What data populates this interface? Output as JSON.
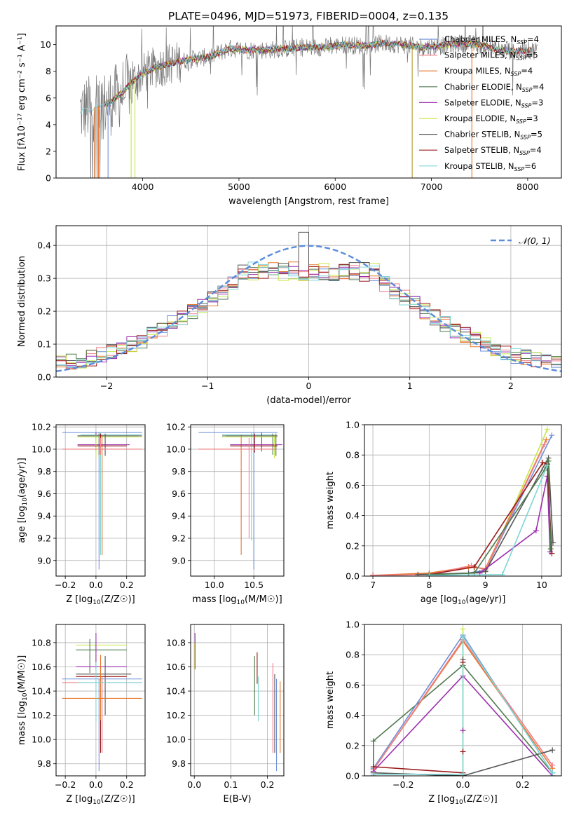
{
  "title": "PLATE=0496, MJD=51973, FIBERID=0004, z=0.135",
  "colors": {
    "chabrier_miles": "#6f8fd8",
    "salpeter_miles": "#f07f8a",
    "kroupa_miles": "#e6782d",
    "chabrier_elodie": "#4f7a4f",
    "salpeter_elodie": "#9b2fae",
    "kroupa_elodie": "#c6e84a",
    "chabrier_stelib": "#555555",
    "salpeter_stelib": "#9b1b1b",
    "kroupa_stelib": "#7fd6d6",
    "gauss": "#5b8bd9",
    "grid": "#b0b0b0"
  },
  "chart_data": [
    {
      "type": "line",
      "panel": "spectrum",
      "xlabel": "wavelength [Angstrom, rest frame]",
      "ylabel": "Flux [fλ10⁻¹⁷ erg cm⁻² s⁻¹ A⁻¹]",
      "xlim": [
        3100,
        8350
      ],
      "ylim": [
        0,
        11.4
      ],
      "xticks": [
        4000,
        5000,
        6000,
        7000,
        8000
      ],
      "yticks": [
        0,
        2,
        4,
        6,
        8,
        10
      ],
      "grid": false,
      "legend_position": "right",
      "legend": [
        {
          "label": "Chabrier MILES, N",
          "sub": "SSP",
          "suffix": "=4",
          "color": "#6f8fd8"
        },
        {
          "label": "Salpeter MILES, N",
          "sub": "SSP",
          "suffix": "=5",
          "color": "#f07f8a"
        },
        {
          "label": "Kroupa MILES, N",
          "sub": "SSP",
          "suffix": "=4",
          "color": "#e6782d"
        },
        {
          "label": "Chabrier ELODIE, N",
          "sub": "SSP",
          "suffix": "=4",
          "color": "#4f7a4f"
        },
        {
          "label": "Salpeter ELODIE, N",
          "sub": "SSP",
          "suffix": "=3",
          "color": "#9b2fae"
        },
        {
          "label": "Kroupa ELODIE, N",
          "sub": "SSP",
          "suffix": "=3",
          "color": "#c6e84a"
        },
        {
          "label": "Chabrier STELIB, N",
          "sub": "SSP",
          "suffix": "=5",
          "color": "#555555"
        },
        {
          "label": "Salpeter STELIB, N",
          "sub": "SSP",
          "suffix": "=4",
          "color": "#9b1b1b"
        },
        {
          "label": "Kroupa STELIB, N",
          "sub": "SSP",
          "suffix": "=6",
          "color": "#7fd6d6"
        }
      ],
      "continuum": {
        "x": [
          3350,
          3500,
          3650,
          3800,
          3950,
          4100,
          4300,
          4500,
          4700,
          4900,
          5100,
          5300,
          5500,
          5700,
          5900,
          6100,
          6300,
          6500,
          6700,
          6900,
          7100,
          7300,
          7500,
          7700,
          7900,
          8100
        ],
        "y": [
          5.0,
          5.3,
          5.6,
          6.5,
          7.6,
          8.2,
          8.6,
          8.9,
          9.1,
          9.7,
          9.6,
          9.6,
          9.7,
          9.8,
          9.8,
          10.0,
          9.9,
          10.1,
          10.0,
          9.8,
          9.9,
          10.1,
          10.0,
          9.6,
          9.5,
          9.6
        ]
      }
    },
    {
      "type": "line",
      "panel": "residual-histogram",
      "xlabel": "(data-model)/error",
      "ylabel": "Normed distribution",
      "xlim": [
        -2.5,
        2.5
      ],
      "ylim": [
        0,
        0.46
      ],
      "xticks": [
        -2,
        -1,
        0,
        1,
        2
      ],
      "yticks": [
        0.0,
        0.1,
        0.2,
        0.3,
        0.4
      ],
      "grid": true,
      "legend_position": "top-right",
      "gauss_label": "𝒩(0, 1)",
      "bin_width": 0.1
    },
    {
      "type": "scatter",
      "panel": "age-vs-metallicity",
      "xlabel": "Z [log10(Z/Z☉)]",
      "ylabel": "age  [log10(age/yr)]",
      "xlim": [
        -0.26,
        0.32
      ],
      "ylim": [
        8.86,
        10.22
      ],
      "xticks": [
        -0.2,
        0.0,
        0.2
      ],
      "yticks": [
        9.0,
        9.2,
        9.4,
        9.6,
        9.8,
        10.0,
        10.2
      ],
      "grid": true,
      "errorbars": [
        {
          "c": "#6f8fd8",
          "x": 0.02,
          "xe": [
            -0.22,
            0.3
          ],
          "y": 10.15,
          "ye": [
            8.92,
            10.15
          ]
        },
        {
          "c": "#7fd6d6",
          "x": 0.03,
          "xe": [
            -0.1,
            0.3
          ],
          "y": 10.13,
          "ye": [
            9.05,
            10.15
          ]
        },
        {
          "c": "#e6782d",
          "x": 0.04,
          "xe": [
            -0.22,
            0.3
          ],
          "y": 10.0,
          "ye": [
            9.05,
            10.13
          ]
        },
        {
          "c": "#4f7a4f",
          "x": 0.02,
          "xe": [
            -0.12,
            0.28
          ],
          "y": 10.12,
          "ye": [
            9.95,
            10.14
          ]
        },
        {
          "c": "#9b2fae",
          "x": 0.0,
          "xe": [
            -0.12,
            0.22
          ],
          "y": 10.04,
          "ye": [
            9.98,
            10.15
          ]
        },
        {
          "c": "#c6e84a",
          "x": 0.0,
          "xe": [
            -0.12,
            0.3
          ],
          "y": 10.11,
          "ye": [
            9.92,
            10.13
          ]
        },
        {
          "c": "#555555",
          "x": 0.06,
          "xe": [
            -0.12,
            0.3
          ],
          "y": 10.12,
          "ye": [
            9.94,
            10.14
          ]
        },
        {
          "c": "#9b1b1b",
          "x": 0.03,
          "xe": [
            -0.12,
            0.2
          ],
          "y": 10.03,
          "ye": [
            9.97,
            10.14
          ]
        },
        {
          "c": "#f07f8a",
          "x": 0.03,
          "xe": [
            -0.22,
            0.3
          ],
          "y": 10.0,
          "ye": [
            9.95,
            10.1
          ]
        }
      ]
    },
    {
      "type": "scatter",
      "panel": "age-vs-mass",
      "xlabel": "mass [log10(M/M☉)]",
      "ylabel": "",
      "xlim": [
        9.7,
        10.88
      ],
      "ylim": [
        8.86,
        10.22
      ],
      "xticks": [
        10.0,
        10.5
      ],
      "yticks": [
        9.0,
        9.2,
        9.4,
        9.6,
        9.8,
        10.0,
        10.2
      ],
      "grid": true,
      "errorbars": [
        {
          "c": "#6f8fd8",
          "x": 10.5,
          "xe": [
            9.8,
            10.8
          ],
          "y": 10.15,
          "ye": [
            8.92,
            10.15
          ]
        },
        {
          "c": "#7fd6d6",
          "x": 10.47,
          "xe": [
            10.1,
            10.75
          ],
          "y": 10.13,
          "ye": [
            9.18,
            10.15
          ]
        },
        {
          "c": "#e6782d",
          "x": 10.34,
          "xe": [
            9.8,
            10.78
          ],
          "y": 10.0,
          "ye": [
            9.05,
            10.13
          ]
        },
        {
          "c": "#4f7a4f",
          "x": 10.74,
          "xe": [
            10.1,
            10.76
          ],
          "y": 10.12,
          "ye": [
            9.95,
            10.14
          ]
        },
        {
          "c": "#9b2fae",
          "x": 10.6,
          "xe": [
            10.2,
            10.86
          ],
          "y": 10.04,
          "ye": [
            9.98,
            10.15
          ]
        },
        {
          "c": "#c6e84a",
          "x": 10.76,
          "xe": [
            10.1,
            10.8
          ],
          "y": 10.11,
          "ye": [
            9.92,
            10.13
          ]
        },
        {
          "c": "#555555",
          "x": 10.78,
          "xe": [
            10.15,
            10.8
          ],
          "y": 10.12,
          "ye": [
            9.94,
            10.14
          ]
        },
        {
          "c": "#9b1b1b",
          "x": 10.51,
          "xe": [
            10.2,
            10.8
          ],
          "y": 10.03,
          "ye": [
            9.97,
            10.14
          ]
        },
        {
          "c": "#f07f8a",
          "x": 10.44,
          "xe": [
            9.8,
            10.78
          ],
          "y": 10.0,
          "ye": [
            9.2,
            10.1
          ]
        }
      ]
    },
    {
      "type": "line",
      "panel": "mass-weight-vs-age",
      "xlabel": "age  [log10(age/yr)]",
      "ylabel": "mass weight",
      "xlim": [
        6.85,
        10.35
      ],
      "ylim": [
        0,
        1.0
      ],
      "xticks": [
        7,
        8,
        9,
        10
      ],
      "yticks": [
        0.0,
        0.2,
        0.4,
        0.6,
        0.8,
        1.0
      ],
      "grid": true,
      "series": [
        {
          "c": "#c6e84a",
          "x": [
            7.0,
            8.0,
            8.7,
            9.0,
            10.1
          ],
          "y": [
            0.005,
            0.01,
            0.02,
            0.03,
            0.97
          ]
        },
        {
          "c": "#6f8fd8",
          "x": [
            7.0,
            8.0,
            8.7,
            9.0,
            10.18
          ],
          "y": [
            0.005,
            0.01,
            0.02,
            0.04,
            0.93
          ]
        },
        {
          "c": "#e6782d",
          "x": [
            7.0,
            8.0,
            8.7,
            9.0,
            10.08
          ],
          "y": [
            0.005,
            0.02,
            0.06,
            0.05,
            0.9
          ]
        },
        {
          "c": "#f07f8a",
          "x": [
            7.0,
            8.0,
            8.75,
            9.0,
            10.05
          ],
          "y": [
            0.005,
            0.01,
            0.07,
            0.04,
            0.87
          ]
        },
        {
          "c": "#555555",
          "x": [
            7.8,
            8.7,
            9.0,
            10.12,
            10.2
          ],
          "y": [
            0.01,
            0.02,
            0.03,
            0.78,
            0.22
          ]
        },
        {
          "c": "#9b2fae",
          "x": [
            8.9,
            9.9,
            10.1,
            10.15
          ],
          "y": [
            0.02,
            0.3,
            0.66,
            0.16
          ]
        },
        {
          "c": "#9b1b1b",
          "x": [
            8.0,
            8.8,
            10.02,
            10.1,
            10.18
          ],
          "y": [
            0.01,
            0.06,
            0.75,
            0.74,
            0.15
          ]
        },
        {
          "c": "#4f7a4f",
          "x": [
            8.0,
            8.8,
            10.05,
            10.12,
            10.16
          ],
          "y": [
            0.01,
            0.02,
            0.7,
            0.76,
            0.18
          ]
        },
        {
          "c": "#7fd6d6",
          "x": [
            8.0,
            9.3,
            10.1
          ],
          "y": [
            0.005,
            0.01,
            0.73
          ]
        }
      ]
    },
    {
      "type": "scatter",
      "panel": "mass-vs-metallicity",
      "xlabel": "Z [log10(Z/Z☉)]",
      "ylabel": "mass [log10(M/M☉)]",
      "xlim": [
        -0.26,
        0.32
      ],
      "ylim": [
        9.7,
        10.95
      ],
      "xticks": [
        -0.2,
        0.0,
        0.2
      ],
      "yticks": [
        9.8,
        10.0,
        10.2,
        10.4,
        10.6,
        10.8
      ],
      "grid": true,
      "errorbars": [
        {
          "c": "#c6e84a",
          "x": 0.0,
          "xe": [
            -0.13,
            0.2
          ],
          "y": 10.78,
          "ye": [
            10.58,
            10.8
          ]
        },
        {
          "c": "#4f7a4f",
          "x": -0.04,
          "xe": [
            -0.13,
            0.2
          ],
          "y": 10.74,
          "ye": [
            10.55,
            10.83
          ]
        },
        {
          "c": "#9b2fae",
          "x": 0.0,
          "xe": [
            -0.13,
            0.2
          ],
          "y": 10.6,
          "ye": [
            10.58,
            10.88
          ]
        },
        {
          "c": "#555555",
          "x": 0.06,
          "xe": [
            -0.13,
            0.23
          ],
          "y": 10.54,
          "ye": [
            10.2,
            10.69
          ]
        },
        {
          "c": "#9b1b1b",
          "x": 0.03,
          "xe": [
            -0.13,
            0.2
          ],
          "y": 10.52,
          "ye": [
            9.89,
            10.6
          ]
        },
        {
          "c": "#6f8fd8",
          "x": 0.02,
          "xe": [
            -0.22,
            0.3
          ],
          "y": 10.5,
          "ye": [
            9.74,
            10.5
          ]
        },
        {
          "c": "#f07f8a",
          "x": 0.04,
          "xe": [
            -0.22,
            0.3
          ],
          "y": 10.47,
          "ye": [
            9.89,
            10.52
          ]
        },
        {
          "c": "#e6782d",
          "x": 0.03,
          "xe": [
            -0.22,
            0.3
          ],
          "y": 10.34,
          "ye": [
            10.16,
            10.7
          ]
        },
        {
          "c": "#7fd6d6",
          "x": 0.0,
          "xe": [
            -0.12,
            0.3
          ],
          "y": 10.47,
          "ye": [
            10.15,
            10.64
          ]
        }
      ]
    },
    {
      "type": "scatter",
      "panel": "mass-vs-ebv",
      "xlabel": "E(B-V)",
      "ylabel": "",
      "xlim": [
        -0.01,
        0.245
      ],
      "ylim": [
        9.7,
        10.95
      ],
      "xticks": [
        0.0,
        0.1,
        0.2
      ],
      "yticks": [
        9.8,
        10.0,
        10.2,
        10.4,
        10.6,
        10.8
      ],
      "grid": true,
      "errorbars": [
        {
          "c": "#c6e84a",
          "x": 0.0,
          "y": [
            10.58,
            10.8
          ]
        },
        {
          "c": "#9b2fae",
          "x": 0.002,
          "y": [
            10.58,
            10.88
          ]
        },
        {
          "c": "#4f7a4f",
          "x": 0.165,
          "y": [
            10.2,
            10.69
          ]
        },
        {
          "c": "#9b1b1b",
          "x": 0.172,
          "y": [
            10.46,
            10.72
          ]
        },
        {
          "c": "#7fd6d6",
          "x": 0.175,
          "y": [
            10.15,
            10.52
          ]
        },
        {
          "c": "#f07f8a",
          "x": 0.215,
          "y": [
            9.89,
            10.63
          ]
        },
        {
          "c": "#555555",
          "x": 0.22,
          "y": [
            9.89,
            10.54
          ]
        },
        {
          "c": "#6f8fd8",
          "x": 0.225,
          "y": [
            9.74,
            10.5
          ]
        },
        {
          "c": "#e6782d",
          "x": 0.235,
          "y": [
            9.89,
            10.48
          ]
        }
      ]
    },
    {
      "type": "line",
      "panel": "mass-weight-vs-metallicity",
      "xlabel": "Z [log10(Z/Z☉)]",
      "ylabel": "mass weight",
      "xlim": [
        -0.33,
        0.33
      ],
      "ylim": [
        0,
        1.0
      ],
      "xticks": [
        -0.2,
        0.0,
        0.2
      ],
      "yticks": [
        0.0,
        0.2,
        0.4,
        0.6,
        0.8,
        1.0
      ],
      "grid": true,
      "series": [
        {
          "c": "#4f7a4f",
          "x": [
            -0.3,
            -0.3,
            0.0,
            0.3
          ],
          "y": [
            0.0,
            0.23,
            0.73,
            0.02
          ]
        },
        {
          "c": "#9b2fae",
          "x": [
            -0.3,
            0.0,
            0.3
          ],
          "y": [
            0.03,
            0.66,
            0.0
          ]
        },
        {
          "c": "#6f8fd8",
          "x": [
            -0.3,
            0.0,
            0.3
          ],
          "y": [
            0.05,
            0.93,
            0.02
          ]
        },
        {
          "c": "#e6782d",
          "x": [
            -0.3,
            0.0,
            0.3
          ],
          "y": [
            0.04,
            0.89,
            0.05
          ]
        },
        {
          "c": "#f07f8a",
          "x": [
            -0.3,
            0.0,
            0.3
          ],
          "y": [
            0.04,
            0.9,
            0.07
          ]
        },
        {
          "c": "#c6e84a",
          "x": [
            0.0,
            0.0
          ],
          "y": [
            0.0,
            0.97
          ]
        },
        {
          "c": "#555555",
          "x": [
            -0.3,
            0.0,
            0.3
          ],
          "y": [
            0.02,
            0.0,
            0.17
          ]
        },
        {
          "c": "#9b1b1b",
          "x": [
            -0.3,
            0.0
          ],
          "y": [
            0.06,
            0.02
          ]
        },
        {
          "c": "#7fd6d6",
          "x": [
            -0.3,
            0.0,
            0.0,
            0.3
          ],
          "y": [
            0.01,
            0.01,
            0.92,
            0.02
          ]
        }
      ],
      "markers": [
        {
          "c": "#9b2fae",
          "x": 0.0,
          "y": 0.3
        },
        {
          "c": "#555555",
          "x": 0.0,
          "y": 0.77
        },
        {
          "c": "#9b1b1b",
          "x": 0.0,
          "y": 0.75
        },
        {
          "c": "#9b1b1b",
          "x": 0.0,
          "y": 0.16
        }
      ]
    }
  ]
}
